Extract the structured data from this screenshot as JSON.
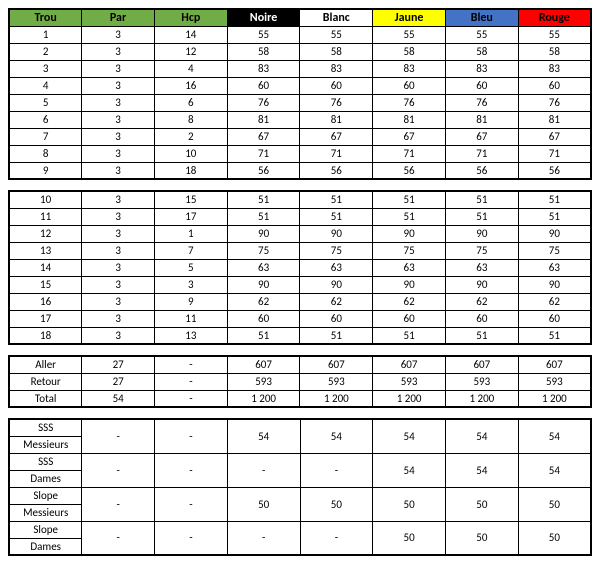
{
  "headers": {
    "trou": {
      "label": "Trou",
      "bg": "#70ad47",
      "fg": "#000000"
    },
    "par": {
      "label": "Par",
      "bg": "#70ad47",
      "fg": "#000000"
    },
    "hcp": {
      "label": "Hcp",
      "bg": "#70ad47",
      "fg": "#000000"
    },
    "noire": {
      "label": "Noire",
      "bg": "#000000",
      "fg": "#ffffff"
    },
    "blanc": {
      "label": "Blanc",
      "bg": "#ffffff",
      "fg": "#000000"
    },
    "jaune": {
      "label": "Jaune",
      "bg": "#ffff00",
      "fg": "#000000"
    },
    "bleu": {
      "label": "Bleu",
      "bg": "#4472c4",
      "fg": "#000000"
    },
    "rouge": {
      "label": "Rouge",
      "bg": "#ff0000",
      "fg": "#000000"
    }
  },
  "front": [
    {
      "trou": "1",
      "par": "3",
      "hcp": "14",
      "noire": "55",
      "blanc": "55",
      "jaune": "55",
      "bleu": "55",
      "rouge": "55"
    },
    {
      "trou": "2",
      "par": "3",
      "hcp": "12",
      "noire": "58",
      "blanc": "58",
      "jaune": "58",
      "bleu": "58",
      "rouge": "58"
    },
    {
      "trou": "3",
      "par": "3",
      "hcp": "4",
      "noire": "83",
      "blanc": "83",
      "jaune": "83",
      "bleu": "83",
      "rouge": "83"
    },
    {
      "trou": "4",
      "par": "3",
      "hcp": "16",
      "noire": "60",
      "blanc": "60",
      "jaune": "60",
      "bleu": "60",
      "rouge": "60"
    },
    {
      "trou": "5",
      "par": "3",
      "hcp": "6",
      "noire": "76",
      "blanc": "76",
      "jaune": "76",
      "bleu": "76",
      "rouge": "76"
    },
    {
      "trou": "6",
      "par": "3",
      "hcp": "8",
      "noire": "81",
      "blanc": "81",
      "jaune": "81",
      "bleu": "81",
      "rouge": "81"
    },
    {
      "trou": "7",
      "par": "3",
      "hcp": "2",
      "noire": "67",
      "blanc": "67",
      "jaune": "67",
      "bleu": "67",
      "rouge": "67"
    },
    {
      "trou": "8",
      "par": "3",
      "hcp": "10",
      "noire": "71",
      "blanc": "71",
      "jaune": "71",
      "bleu": "71",
      "rouge": "71"
    },
    {
      "trou": "9",
      "par": "3",
      "hcp": "18",
      "noire": "56",
      "blanc": "56",
      "jaune": "56",
      "bleu": "56",
      "rouge": "56"
    }
  ],
  "back": [
    {
      "trou": "10",
      "par": "3",
      "hcp": "15",
      "noire": "51",
      "blanc": "51",
      "jaune": "51",
      "bleu": "51",
      "rouge": "51"
    },
    {
      "trou": "11",
      "par": "3",
      "hcp": "17",
      "noire": "51",
      "blanc": "51",
      "jaune": "51",
      "bleu": "51",
      "rouge": "51"
    },
    {
      "trou": "12",
      "par": "3",
      "hcp": "1",
      "noire": "90",
      "blanc": "90",
      "jaune": "90",
      "bleu": "90",
      "rouge": "90"
    },
    {
      "trou": "13",
      "par": "3",
      "hcp": "7",
      "noire": "75",
      "blanc": "75",
      "jaune": "75",
      "bleu": "75",
      "rouge": "75"
    },
    {
      "trou": "14",
      "par": "3",
      "hcp": "5",
      "noire": "63",
      "blanc": "63",
      "jaune": "63",
      "bleu": "63",
      "rouge": "63"
    },
    {
      "trou": "15",
      "par": "3",
      "hcp": "3",
      "noire": "90",
      "blanc": "90",
      "jaune": "90",
      "bleu": "90",
      "rouge": "90"
    },
    {
      "trou": "16",
      "par": "3",
      "hcp": "9",
      "noire": "62",
      "blanc": "62",
      "jaune": "62",
      "bleu": "62",
      "rouge": "62"
    },
    {
      "trou": "17",
      "par": "3",
      "hcp": "11",
      "noire": "60",
      "blanc": "60",
      "jaune": "60",
      "bleu": "60",
      "rouge": "60"
    },
    {
      "trou": "18",
      "par": "3",
      "hcp": "13",
      "noire": "51",
      "blanc": "51",
      "jaune": "51",
      "bleu": "51",
      "rouge": "51"
    }
  ],
  "totals": [
    {
      "label": "Aller",
      "par": "27",
      "hcp": "-",
      "noire": "607",
      "blanc": "607",
      "jaune": "607",
      "bleu": "607",
      "rouge": "607"
    },
    {
      "label": "Retour",
      "par": "27",
      "hcp": "-",
      "noire": "593",
      "blanc": "593",
      "jaune": "593",
      "bleu": "593",
      "rouge": "593"
    },
    {
      "label": "Total",
      "par": "54",
      "hcp": "-",
      "noire": "1 200",
      "blanc": "1 200",
      "jaune": "1 200",
      "bleu": "1 200",
      "rouge": "1 200"
    }
  ],
  "ratings": [
    {
      "line1": "SSS",
      "line2": "Messieurs",
      "par": "-",
      "hcp": "-",
      "noire": "54",
      "blanc": "54",
      "jaune": "54",
      "bleu": "54",
      "rouge": "54"
    },
    {
      "line1": "SSS",
      "line2": "Dames",
      "par": "-",
      "hcp": "-",
      "noire": "-",
      "blanc": "-",
      "jaune": "54",
      "bleu": "54",
      "rouge": "54"
    },
    {
      "line1": "Slope",
      "line2": "Messieurs",
      "par": "-",
      "hcp": "-",
      "noire": "50",
      "blanc": "50",
      "jaune": "50",
      "bleu": "50",
      "rouge": "50"
    },
    {
      "line1": "Slope",
      "line2": "Dames",
      "par": "-",
      "hcp": "-",
      "noire": "-",
      "blanc": "-",
      "jaune": "50",
      "bleu": "50",
      "rouge": "50"
    }
  ]
}
